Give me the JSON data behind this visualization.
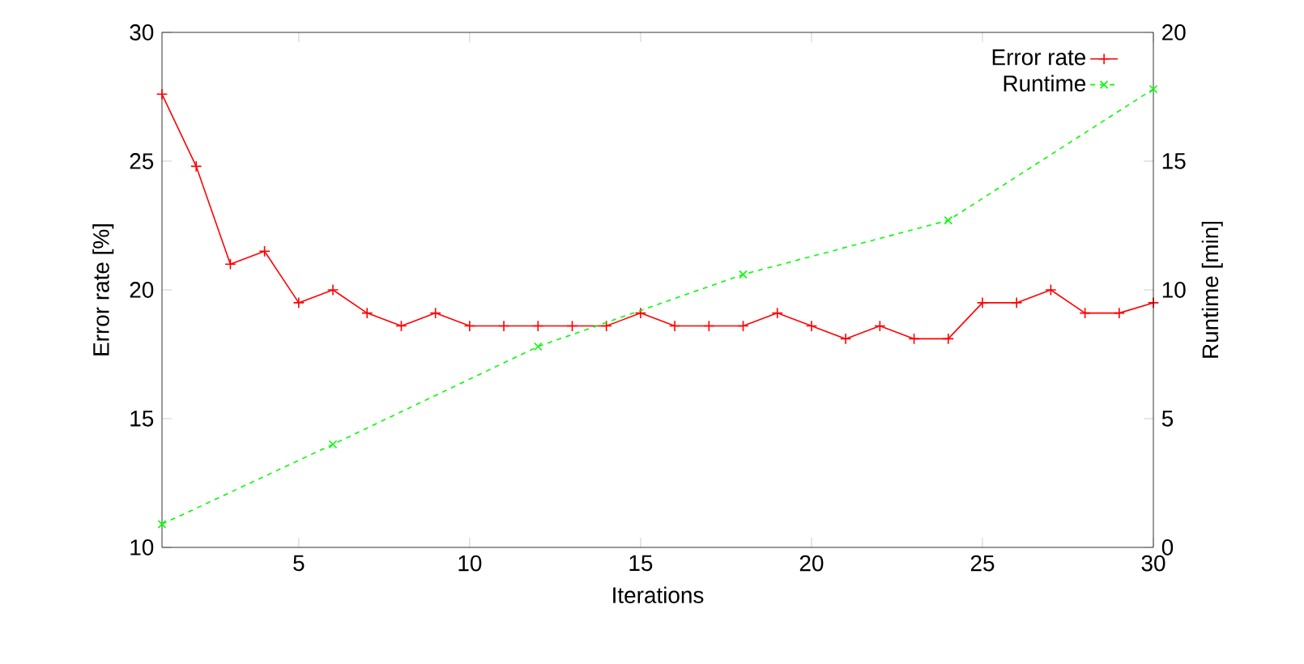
{
  "chart_data": {
    "type": "line",
    "xlabel": "Iterations",
    "ylabel": "Error rate [%]",
    "y2label": "Runtime [min]",
    "xlim": [
      1,
      30
    ],
    "xticks": [
      5,
      10,
      15,
      20,
      25,
      30
    ],
    "ylim": [
      10,
      30
    ],
    "yticks": [
      10,
      15,
      20,
      25,
      30
    ],
    "y2lim": [
      0,
      20
    ],
    "y2ticks": [
      0,
      5,
      10,
      15,
      20
    ],
    "legend": "top right",
    "series": [
      {
        "name": "Error rate",
        "color": "#ff0000",
        "line_style": "solid",
        "marker": "plus",
        "x": [
          1,
          2,
          3,
          4,
          5,
          6,
          7,
          8,
          9,
          10,
          11,
          12,
          13,
          14,
          15,
          16,
          17,
          18,
          19,
          20,
          21,
          22,
          23,
          24,
          25,
          26,
          27,
          28,
          29,
          30
        ],
        "values": [
          27.6,
          24.8,
          21.0,
          21.5,
          19.5,
          20.0,
          19.1,
          18.6,
          19.1,
          18.6,
          18.6,
          18.6,
          18.6,
          18.6,
          19.1,
          18.6,
          18.6,
          18.6,
          19.1,
          18.6,
          18.1,
          18.6,
          18.1,
          18.1,
          19.5,
          19.5,
          20.0,
          19.1,
          19.1,
          19.5
        ]
      },
      {
        "name": "Runtime",
        "color": "#00ff00",
        "line_style": "dashed",
        "marker": "cross",
        "axis": "y2",
        "x": [
          1,
          6,
          12,
          18,
          24,
          30
        ],
        "values": [
          0.9,
          4.0,
          7.8,
          10.6,
          12.7,
          17.8
        ]
      }
    ]
  }
}
